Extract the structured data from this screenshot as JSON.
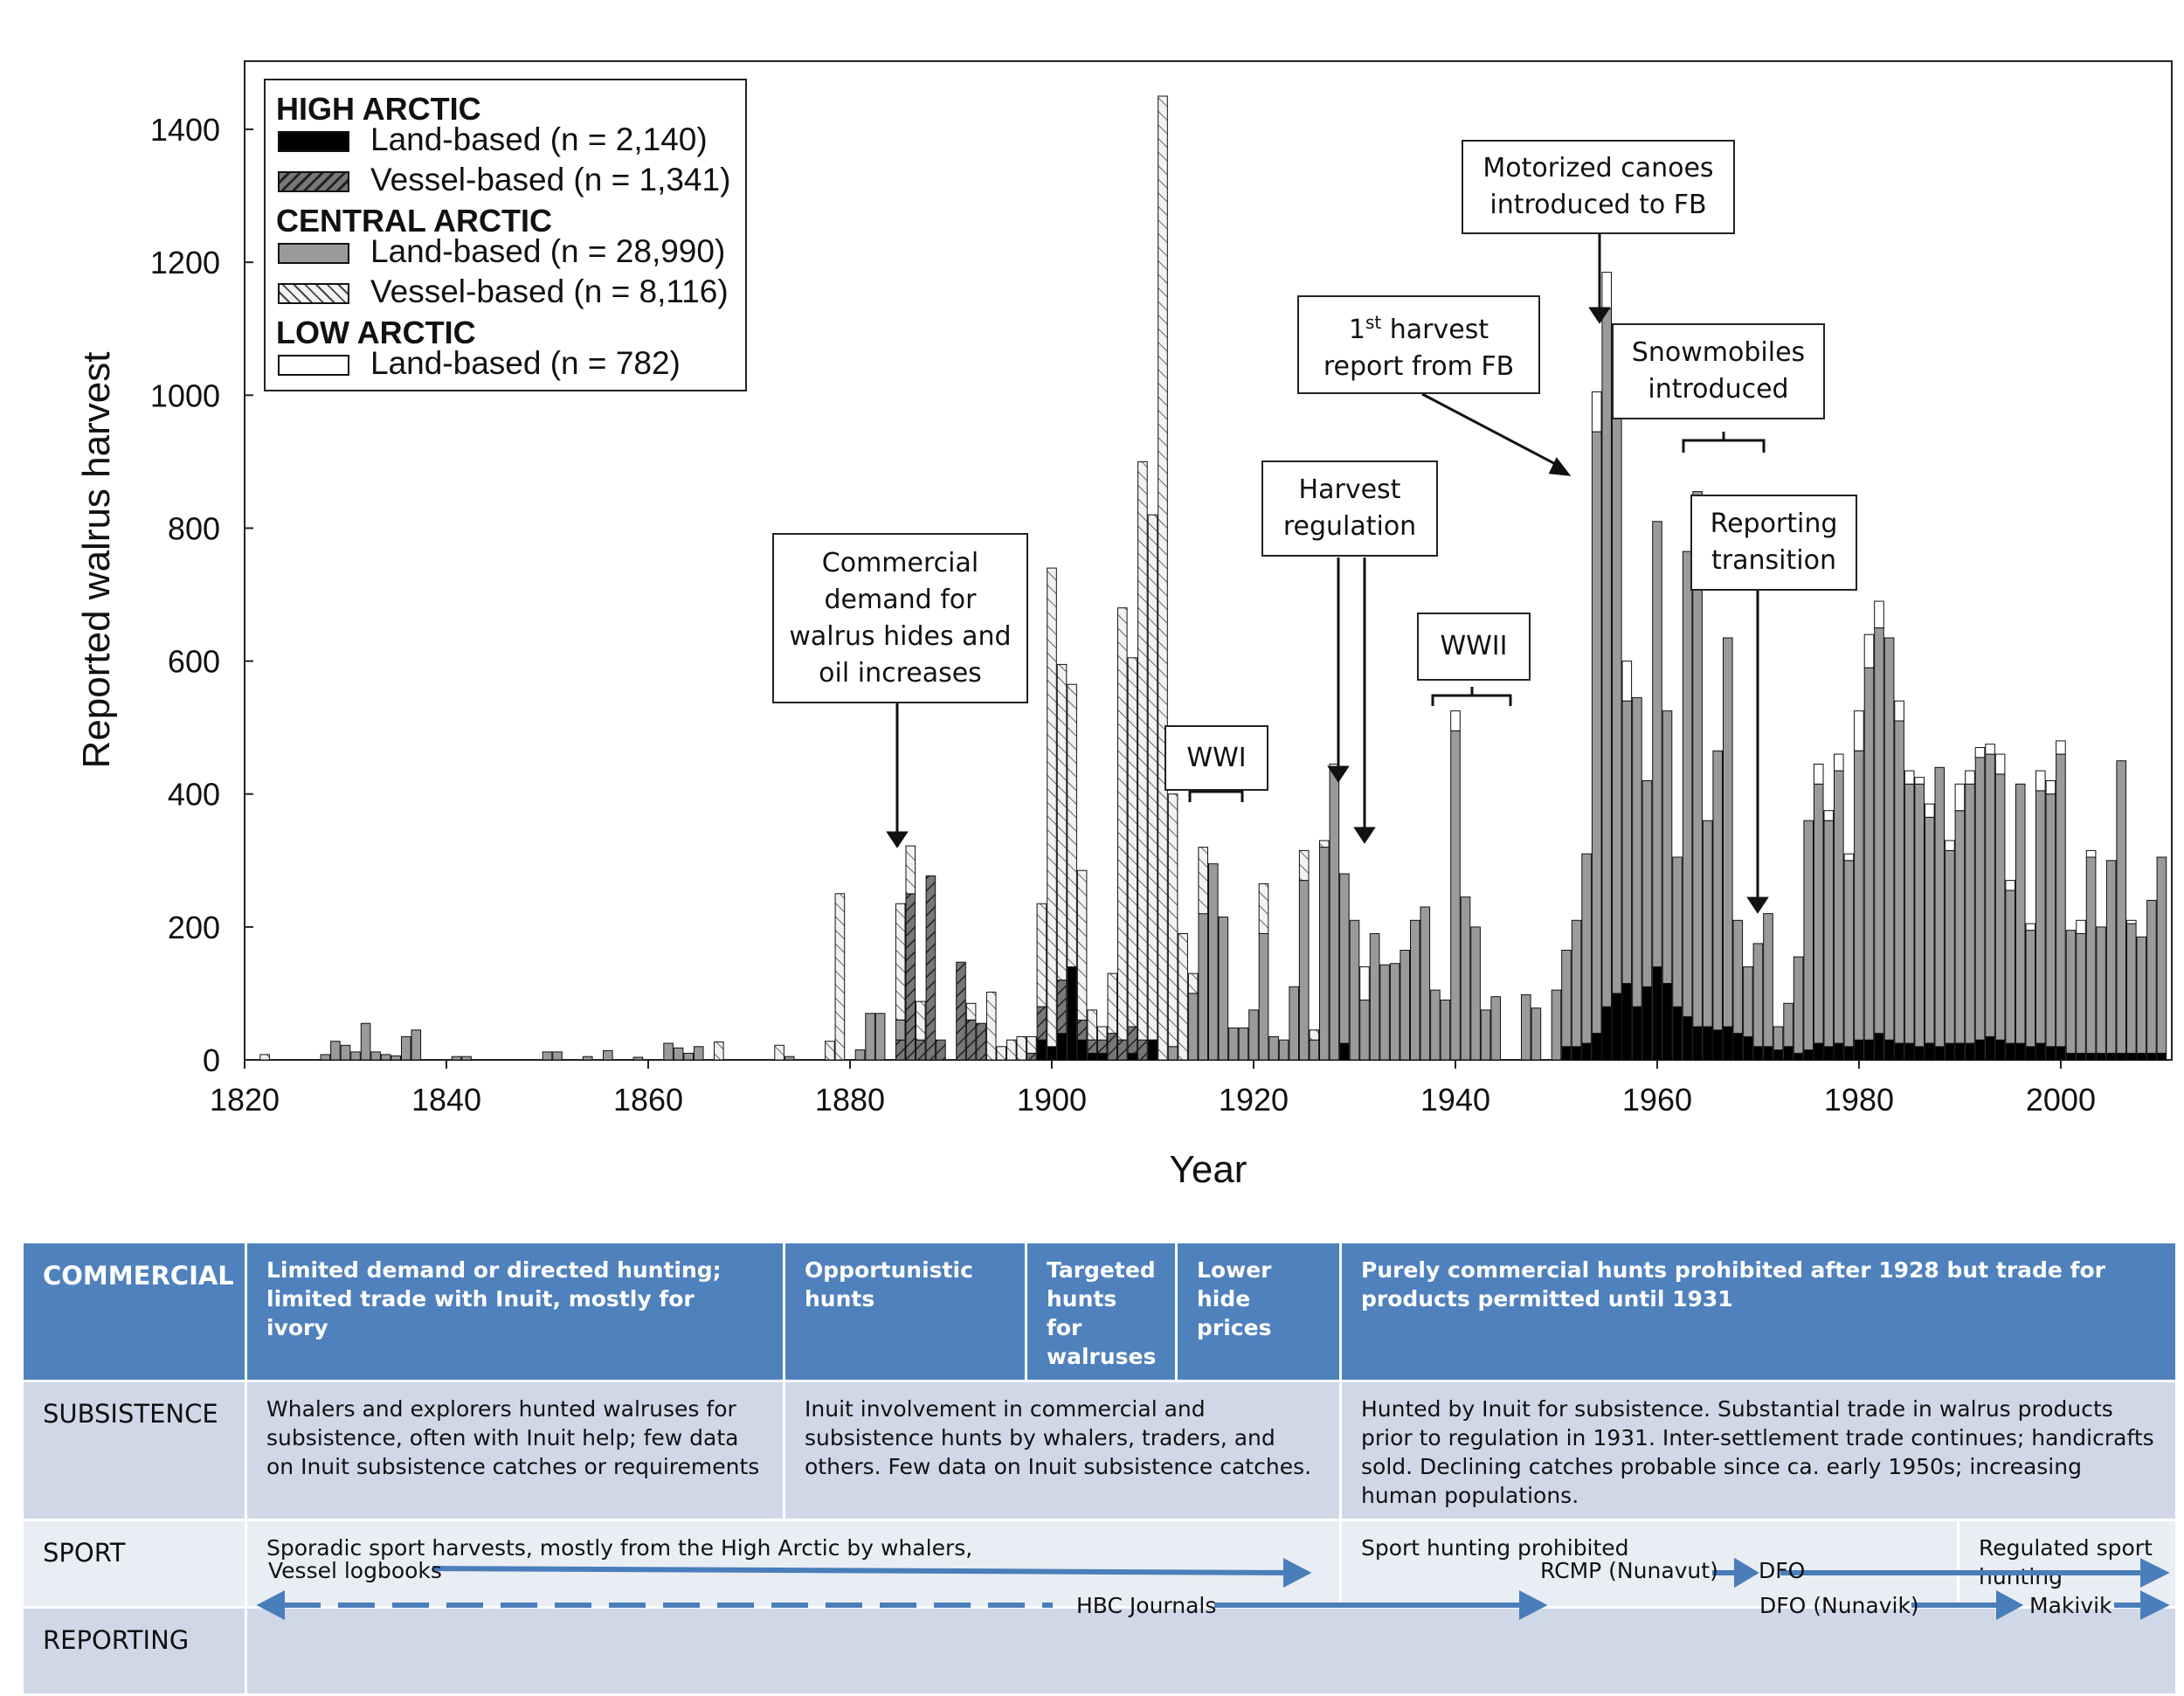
{
  "colors": {
    "high_land": "#000000",
    "high_vessel": "#555555",
    "central_land": "#9a9a9a",
    "central_vessel": "#e2e2e2",
    "low_land": "#ffffff",
    "table_header": "#4f81bd",
    "table_dark": "#d0d8e8",
    "table_light": "#e9edf4",
    "arrow": "#4a7ebb"
  },
  "chart_data": {
    "type": "bar",
    "stacked": true,
    "xlabel": "Year",
    "ylabel": "Reported walrus harvest",
    "xlim": [
      1820,
      2010
    ],
    "ylim": [
      0,
      1450
    ],
    "x_ticks": [
      "1820",
      "1840",
      "1860",
      "1880",
      "1900",
      "1920",
      "1940",
      "1960",
      "1980",
      "2000"
    ],
    "y_ticks": [
      "0",
      "200",
      "400",
      "600",
      "800",
      "1000",
      "1200",
      "1400"
    ],
    "grid": false,
    "legend_position": "top-left",
    "series_order": [
      "high_land",
      "high_vessel",
      "central_land",
      "central_vessel",
      "low_land"
    ],
    "bars": [
      {
        "year": 1822,
        "central_vessel": 8
      },
      {
        "year": 1828,
        "central_land": 8
      },
      {
        "year": 1829,
        "central_land": 28
      },
      {
        "year": 1830,
        "central_land": 22
      },
      {
        "year": 1831,
        "central_land": 12
      },
      {
        "year": 1832,
        "central_land": 55
      },
      {
        "year": 1833,
        "central_land": 12
      },
      {
        "year": 1834,
        "central_land": 8
      },
      {
        "year": 1835,
        "central_land": 6
      },
      {
        "year": 1836,
        "central_land": 35
      },
      {
        "year": 1837,
        "central_land": 45
      },
      {
        "year": 1841,
        "central_land": 5
      },
      {
        "year": 1842,
        "central_land": 5
      },
      {
        "year": 1850,
        "central_land": 12
      },
      {
        "year": 1851,
        "central_land": 12
      },
      {
        "year": 1854,
        "central_land": 5
      },
      {
        "year": 1856,
        "central_land": 14
      },
      {
        "year": 1859,
        "central_land": 4
      },
      {
        "year": 1862,
        "central_land": 25
      },
      {
        "year": 1863,
        "central_land": 18
      },
      {
        "year": 1864,
        "central_land": 10
      },
      {
        "year": 1865,
        "central_land": 20
      },
      {
        "year": 1867,
        "central_vessel": 27
      },
      {
        "year": 1873,
        "central_vessel": 22
      },
      {
        "year": 1874,
        "central_land": 5
      },
      {
        "year": 1878,
        "central_vessel": 28
      },
      {
        "year": 1879,
        "central_vessel": 250
      },
      {
        "year": 1881,
        "central_land": 15
      },
      {
        "year": 1882,
        "central_land": 70
      },
      {
        "year": 1883,
        "central_land": 70
      },
      {
        "year": 1885,
        "high_vessel": 30,
        "central_land": 30,
        "central_vessel": 175
      },
      {
        "year": 1886,
        "high_vessel": 250,
        "central_vessel": 72
      },
      {
        "year": 1887,
        "high_vessel": 30,
        "central_vessel": 58
      },
      {
        "year": 1888,
        "high_vessel": 277
      },
      {
        "year": 1889,
        "high_vessel": 30
      },
      {
        "year": 1891,
        "high_vessel": 147
      },
      {
        "year": 1892,
        "high_vessel": 60,
        "central_vessel": 25
      },
      {
        "year": 1893,
        "high_vessel": 55
      },
      {
        "year": 1894,
        "central_vessel": 102
      },
      {
        "year": 1895,
        "central_vessel": 20
      },
      {
        "year": 1896,
        "central_vessel": 30
      },
      {
        "year": 1897,
        "central_vessel": 35
      },
      {
        "year": 1898,
        "high_vessel": 10,
        "central_vessel": 25
      },
      {
        "year": 1899,
        "high_land": 30,
        "high_vessel": 50,
        "central_vessel": 155
      },
      {
        "year": 1900,
        "high_land": 20,
        "central_vessel": 720
      },
      {
        "year": 1901,
        "high_land": 40,
        "high_vessel": 80,
        "central_vessel": 475
      },
      {
        "year": 1902,
        "high_land": 140,
        "central_vessel": 425
      },
      {
        "year": 1903,
        "high_land": 30,
        "high_vessel": 30,
        "central_vessel": 225
      },
      {
        "year": 1904,
        "high_land": 10,
        "high_vessel": 20,
        "central_vessel": 45
      },
      {
        "year": 1905,
        "high_land": 10,
        "high_vessel": 20,
        "central_vessel": 20
      },
      {
        "year": 1906,
        "high_vessel": 40,
        "central_vessel": 90
      },
      {
        "year": 1907,
        "high_vessel": 30,
        "central_vessel": 650
      },
      {
        "year": 1908,
        "high_land": 10,
        "high_vessel": 40,
        "central_vessel": 555
      },
      {
        "year": 1909,
        "high_vessel": 30,
        "central_vessel": 870
      },
      {
        "year": 1910,
        "high_land": 30,
        "central_vessel": 790
      },
      {
        "year": 1911,
        "central_vessel": 1450
      },
      {
        "year": 1912,
        "central_land": 20,
        "central_vessel": 380
      },
      {
        "year": 1913,
        "central_vessel": 190
      },
      {
        "year": 1914,
        "central_land": 100,
        "central_vessel": 30
      },
      {
        "year": 1915,
        "central_land": 220,
        "central_vessel": 100
      },
      {
        "year": 1916,
        "central_land": 295
      },
      {
        "year": 1917,
        "central_land": 215
      },
      {
        "year": 1918,
        "central_land": 48
      },
      {
        "year": 1919,
        "central_land": 48
      },
      {
        "year": 1920,
        "central_land": 75
      },
      {
        "year": 1921,
        "central_land": 190,
        "central_vessel": 75
      },
      {
        "year": 1922,
        "central_land": 35
      },
      {
        "year": 1923,
        "central_land": 30
      },
      {
        "year": 1924,
        "central_land": 110
      },
      {
        "year": 1925,
        "central_land": 270,
        "central_vessel": 45
      },
      {
        "year": 1926,
        "central_land": 30,
        "central_vessel": 15
      },
      {
        "year": 1927,
        "central_land": 320,
        "central_vessel": 10
      },
      {
        "year": 1928,
        "central_land": 440,
        "low_land": 5
      },
      {
        "year": 1929,
        "high_land": 25,
        "central_land": 255
      },
      {
        "year": 1930,
        "central_land": 210
      },
      {
        "year": 1931,
        "central_land": 90,
        "low_land": 50
      },
      {
        "year": 1932,
        "central_land": 190
      },
      {
        "year": 1933,
        "central_land": 143
      },
      {
        "year": 1934,
        "central_land": 145
      },
      {
        "year": 1935,
        "central_land": 165
      },
      {
        "year": 1936,
        "central_land": 210
      },
      {
        "year": 1937,
        "central_land": 230
      },
      {
        "year": 1938,
        "central_land": 105
      },
      {
        "year": 1939,
        "central_land": 90
      },
      {
        "year": 1940,
        "central_land": 495,
        "low_land": 30
      },
      {
        "year": 1941,
        "central_land": 245
      },
      {
        "year": 1942,
        "central_land": 200
      },
      {
        "year": 1943,
        "central_land": 75
      },
      {
        "year": 1944,
        "central_land": 95
      },
      {
        "year": 1947,
        "central_land": 98
      },
      {
        "year": 1948,
        "central_land": 78
      },
      {
        "year": 1950,
        "central_land": 105
      },
      {
        "year": 1951,
        "high_land": 20,
        "central_land": 145
      },
      {
        "year": 1952,
        "high_land": 20,
        "central_land": 190
      },
      {
        "year": 1953,
        "high_land": 25,
        "central_land": 285
      },
      {
        "year": 1954,
        "high_land": 40,
        "central_land": 905,
        "low_land": 60
      },
      {
        "year": 1955,
        "high_land": 80,
        "central_land": 1050,
        "low_land": 55
      },
      {
        "year": 1956,
        "high_land": 100,
        "central_land": 935,
        "low_land": 60
      },
      {
        "year": 1957,
        "high_land": 115,
        "central_land": 425,
        "low_land": 60
      },
      {
        "year": 1958,
        "high_land": 80,
        "central_land": 465
      },
      {
        "year": 1959,
        "high_land": 110,
        "central_land": 310
      },
      {
        "year": 1960,
        "high_land": 140,
        "central_land": 670
      },
      {
        "year": 1961,
        "high_land": 115,
        "central_land": 410
      },
      {
        "year": 1962,
        "high_land": 80,
        "central_land": 225
      },
      {
        "year": 1963,
        "high_land": 65,
        "central_land": 700,
        "low_land": 0
      },
      {
        "year": 1964,
        "high_land": 50,
        "central_land": 805
      },
      {
        "year": 1965,
        "high_land": 50,
        "central_land": 310
      },
      {
        "year": 1966,
        "high_land": 45,
        "central_land": 420
      },
      {
        "year": 1967,
        "high_land": 50,
        "central_land": 585
      },
      {
        "year": 1968,
        "high_land": 40,
        "central_land": 170
      },
      {
        "year": 1969,
        "high_land": 35,
        "central_land": 105
      },
      {
        "year": 1970,
        "high_land": 20,
        "central_land": 155
      },
      {
        "year": 1971,
        "high_land": 20,
        "central_land": 200
      },
      {
        "year": 1972,
        "high_land": 15,
        "central_land": 35
      },
      {
        "year": 1973,
        "high_land": 20,
        "central_land": 65
      },
      {
        "year": 1974,
        "high_land": 10,
        "central_land": 145
      },
      {
        "year": 1975,
        "high_land": 15,
        "central_land": 345
      },
      {
        "year": 1976,
        "high_land": 25,
        "central_land": 390,
        "low_land": 30
      },
      {
        "year": 1977,
        "high_land": 20,
        "central_land": 340,
        "low_land": 15
      },
      {
        "year": 1978,
        "high_land": 25,
        "central_land": 410,
        "low_land": 25
      },
      {
        "year": 1979,
        "high_land": 20,
        "central_land": 280,
        "low_land": 10
      },
      {
        "year": 1980,
        "high_land": 30,
        "central_land": 435,
        "low_land": 60
      },
      {
        "year": 1981,
        "high_land": 30,
        "central_land": 560,
        "low_land": 50
      },
      {
        "year": 1982,
        "high_land": 40,
        "central_land": 610,
        "low_land": 40
      },
      {
        "year": 1983,
        "high_land": 30,
        "central_land": 605
      },
      {
        "year": 1984,
        "high_land": 25,
        "central_land": 485,
        "low_land": 30
      },
      {
        "year": 1985,
        "high_land": 25,
        "central_land": 390,
        "low_land": 20
      },
      {
        "year": 1986,
        "high_land": 20,
        "central_land": 395,
        "low_land": 10
      },
      {
        "year": 1987,
        "high_land": 25,
        "central_land": 340,
        "low_land": 20
      },
      {
        "year": 1988,
        "high_land": 20,
        "central_land": 420
      },
      {
        "year": 1989,
        "high_land": 25,
        "central_land": 290,
        "low_land": 15
      },
      {
        "year": 1990,
        "high_land": 25,
        "central_land": 350,
        "low_land": 40
      },
      {
        "year": 1991,
        "high_land": 25,
        "central_land": 390,
        "low_land": 20
      },
      {
        "year": 1992,
        "high_land": 30,
        "central_land": 425,
        "low_land": 15
      },
      {
        "year": 1993,
        "high_land": 35,
        "central_land": 425,
        "low_land": 15
      },
      {
        "year": 1994,
        "high_land": 30,
        "central_land": 400,
        "low_land": 30
      },
      {
        "year": 1995,
        "high_land": 25,
        "central_land": 230,
        "low_land": 15
      },
      {
        "year": 1996,
        "high_land": 25,
        "central_land": 390
      },
      {
        "year": 1997,
        "high_land": 20,
        "central_land": 175,
        "low_land": 10
      },
      {
        "year": 1998,
        "high_land": 25,
        "central_land": 380,
        "low_land": 30
      },
      {
        "year": 1999,
        "high_land": 20,
        "central_land": 380,
        "low_land": 20
      },
      {
        "year": 2000,
        "high_land": 20,
        "central_land": 440,
        "low_land": 20
      },
      {
        "year": 2001,
        "high_land": 10,
        "central_land": 185
      },
      {
        "year": 2002,
        "high_land": 10,
        "central_land": 180,
        "low_land": 20
      },
      {
        "year": 2003,
        "high_land": 10,
        "central_land": 295,
        "low_land": 10
      },
      {
        "year": 2004,
        "high_land": 10,
        "central_land": 190
      },
      {
        "year": 2005,
        "high_land": 10,
        "central_land": 290
      },
      {
        "year": 2006,
        "high_land": 10,
        "central_land": 440
      },
      {
        "year": 2007,
        "high_land": 10,
        "central_land": 195,
        "low_land": 5
      },
      {
        "year": 2008,
        "high_land": 10,
        "central_land": 175
      },
      {
        "year": 2009,
        "high_land": 10,
        "central_land": 230
      },
      {
        "year": 2010,
        "high_land": 10,
        "central_land": 295
      }
    ]
  },
  "legend": {
    "high_arctic": "HIGH ARCTIC",
    "high_land": "Land-based (n = 2,140)",
    "high_vessel": "Vessel-based (n = 1,341)",
    "central_arctic": "CENTRAL ARCTIC",
    "central_land": "Land-based (n = 28,990)",
    "central_vessel": "Vessel-based (n = 8,116)",
    "low_arctic": "LOW ARCTIC",
    "low_land": "Land-based (n = 782)"
  },
  "annotations": {
    "commercial_demand": [
      "Commercial",
      "demand for",
      "walrus hides and",
      "oil increases"
    ],
    "wwi": "WWI",
    "harvest_regulation": [
      "Harvest",
      "regulation"
    ],
    "wwii": "WWII",
    "first_harvest_prefix": "1",
    "first_harvest_sup": "st",
    "first_harvest_rest": " harvest",
    "first_harvest_line2": "report from FB",
    "motorized_canoes": [
      "Motorized canoes",
      "introduced to FB"
    ],
    "snowmobiles": [
      "Snowmobiles",
      "introduced"
    ],
    "reporting_transition": [
      "Reporting",
      "transition"
    ]
  },
  "table": {
    "commercial": {
      "head": "COMMERCIAL",
      "c1": "Limited demand or directed hunting; limited trade with Inuit,  mostly for ivory",
      "c2": "Opportunistic hunts",
      "c3": "Targeted hunts for walruses",
      "c4": "Lower hide prices",
      "c5": "Purely commercial hunts prohibited after 1928 but trade for products permitted until 1931"
    },
    "subsistence": {
      "head": "SUBSISTENCE",
      "c1": "Whalers and explorers hunted walruses for subsistence, often with Inuit help; few data on Inuit subsistence catches or requirements",
      "c2": "Inuit involvement in commercial and subsistence hunts by whalers, traders, and others. Few data on Inuit subsistence catches.",
      "c3": "Hunted by Inuit for subsistence.  Substantial trade in walrus products prior to regulation in 1931. Inter-settlement trade continues; handicrafts sold. Declining catches probable since ca. early 1950s; increasing human populations."
    },
    "sport": {
      "head": "SPORT",
      "c1": "Sporadic sport harvests, mostly from the High Arctic by whalers,",
      "c2": "Sport hunting prohibited",
      "c3": "Regulated sport hunting"
    },
    "reporting": {
      "head": "REPORTING",
      "vessel_logbooks": "Vessel logbooks",
      "hbc_journals": "HBC Journals",
      "rcmp": "RCMP (Nunavut)",
      "dfo": "DFO",
      "dfo_nunavik": "DFO (Nunavik)",
      "makivik": "Makivik"
    }
  }
}
